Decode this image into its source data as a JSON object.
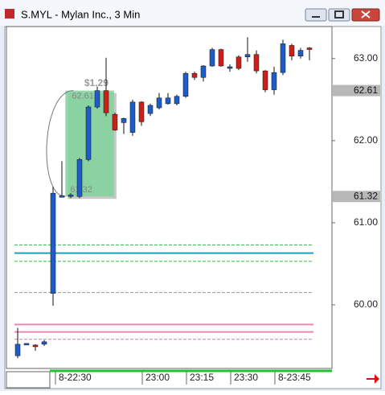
{
  "chart_data": {
    "type": "candlestick",
    "title": "S.MYL - Mylan Inc., 3 Min",
    "categories": [
      null,
      null,
      null,
      null,
      "8-22:30",
      null,
      null,
      null,
      null,
      null,
      null,
      null,
      null,
      null,
      "23:00",
      null,
      null,
      null,
      null,
      "23:15",
      null,
      null,
      null,
      null,
      "23:30",
      null,
      null,
      null,
      null,
      "8-23:45",
      null,
      null,
      null,
      null
    ],
    "series": [
      {
        "up_color": "#1e5cc8",
        "down_color": "#cc1f1a",
        "open": [
          59.38,
          59.52,
          59.51,
          59.52,
          60.14,
          61.33,
          61.32,
          61.32,
          61.77,
          62.41,
          62.61,
          62.32,
          62.22,
          62.1,
          62.47,
          62.33,
          62.4,
          62.45,
          62.45,
          62.54,
          62.82,
          62.77,
          62.91,
          63.11,
          62.89,
          63.02,
          63.02,
          63.05,
          62.85,
          62.62,
          62.83,
          63.16,
          63.03,
          63.13
        ],
        "high": [
          59.72,
          59.53,
          59.52,
          59.57,
          61.44,
          61.75,
          61.36,
          61.79,
          62.43,
          62.66,
          63.01,
          62.34,
          62.28,
          62.5,
          62.48,
          62.45,
          62.58,
          62.58,
          62.56,
          62.84,
          62.84,
          62.92,
          63.13,
          63.12,
          62.93,
          63.04,
          63.26,
          63.1,
          62.86,
          62.9,
          63.23,
          63.18,
          63.13,
          63.14
        ],
        "low": [
          59.35,
          59.51,
          59.44,
          59.5,
          59.99,
          61.31,
          61.3,
          61.3,
          61.75,
          62.39,
          62.3,
          62.12,
          62.08,
          62.06,
          62.18,
          62.3,
          62.38,
          62.44,
          62.43,
          62.52,
          62.74,
          62.72,
          62.9,
          62.9,
          62.84,
          62.86,
          62.96,
          62.82,
          62.59,
          62.56,
          62.8,
          62.98,
          63.0,
          62.98
        ],
        "close": [
          59.52,
          59.53,
          59.49,
          59.55,
          61.36,
          61.33,
          61.34,
          61.77,
          62.41,
          62.61,
          62.34,
          62.13,
          62.27,
          62.47,
          62.23,
          62.43,
          62.52,
          62.52,
          62.54,
          62.82,
          62.77,
          62.91,
          63.11,
          62.91,
          62.9,
          62.88,
          63.05,
          62.85,
          62.62,
          62.83,
          63.18,
          63.03,
          63.1,
          63.12
        ]
      }
    ],
    "ylim": [
      59.225,
      63.39
    ],
    "yticks": [
      {
        "value": 60,
        "label": "60.00"
      },
      {
        "value": 61,
        "label": "61.00"
      },
      {
        "value": 62,
        "label": "62.00"
      },
      {
        "value": 63,
        "label": "63.00"
      }
    ],
    "price_markers": [
      62.61,
      61.32
    ],
    "levels": [
      {
        "value": 60.73,
        "color": "#2db84a",
        "dashed": true
      },
      {
        "value": 60.63,
        "color": "#1aa0c0",
        "dashed": false
      },
      {
        "value": 60.53,
        "color": "#2db84a",
        "dashed": true
      },
      {
        "value": 60.15,
        "color": "#9a9a9a",
        "dashed": true
      },
      {
        "value": 59.76,
        "color": "#e58ab8",
        "dashed": false
      },
      {
        "value": 59.67,
        "color": "#e58ab8",
        "dashed": false
      },
      {
        "value": 59.58,
        "color": "#c080c0",
        "dashed": true
      }
    ],
    "range_annotation": {
      "label": "$1.29",
      "high": 62.61,
      "low": 61.32,
      "color": "#7fd49a"
    }
  }
}
